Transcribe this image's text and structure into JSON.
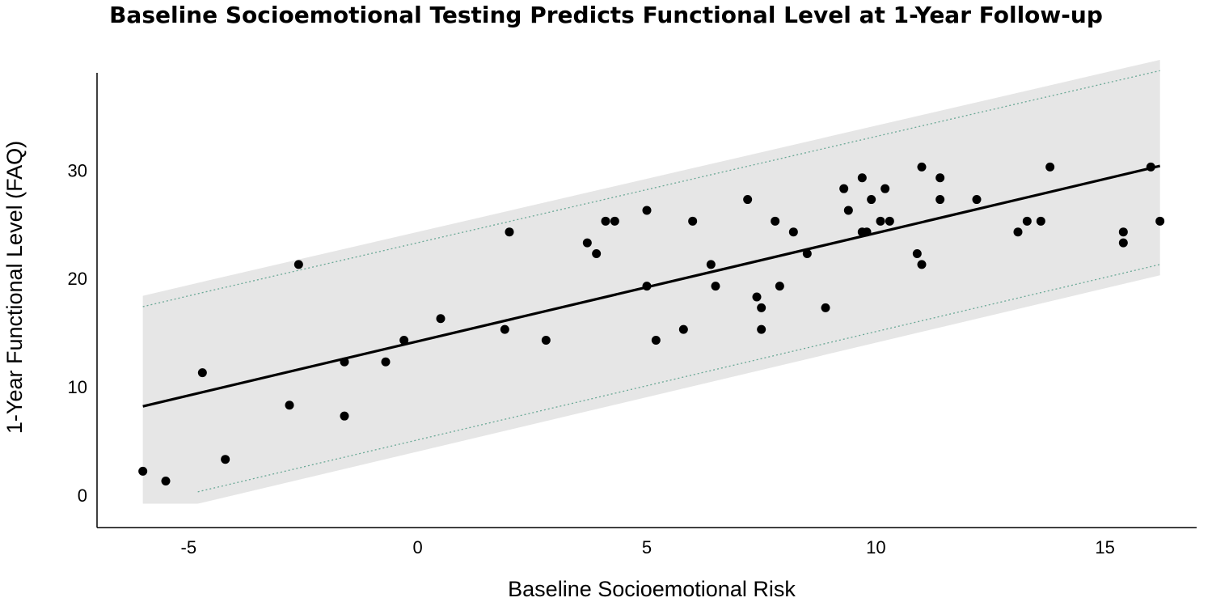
{
  "chart_data": {
    "type": "scatter",
    "title": "Baseline Socioemotional Testing Predicts Functional Level at 1-Year Follow-up",
    "xlabel": "Baseline Socioemotional Risk",
    "ylabel": "1-Year Functional Level (FAQ)",
    "xlim": [
      -7.0,
      17.0
    ],
    "ylim": [
      -3.0,
      39.0
    ],
    "x_ticks": [
      -5,
      0,
      5,
      10,
      15
    ],
    "y_ticks": [
      0,
      10,
      20,
      30
    ],
    "grid": false,
    "colors": {
      "points": "#000000",
      "fit_line": "#000000",
      "band": "#e6e6e6",
      "band_edge": "#6aa896",
      "axes": "#000000"
    },
    "fit_line": {
      "x": [
        -6.0,
        16.2
      ],
      "y": [
        8.2,
        30.4
      ]
    },
    "prediction_band": {
      "x": [
        -6.0,
        -4.8,
        16.2
      ],
      "outer_upper": [
        18.4,
        19.6,
        40.2
      ],
      "outer_lower": [
        -0.8,
        -0.8,
        20.3
      ],
      "inner_upper": [
        17.4,
        18.6,
        39.2
      ],
      "inner_lower": [
        null,
        0.3,
        21.3
      ]
    },
    "points": [
      {
        "x": -6.0,
        "y": 2.2
      },
      {
        "x": -5.5,
        "y": 1.3
      },
      {
        "x": -4.7,
        "y": 11.3
      },
      {
        "x": -4.2,
        "y": 3.3
      },
      {
        "x": -2.8,
        "y": 8.3
      },
      {
        "x": -2.6,
        "y": 21.3
      },
      {
        "x": -1.6,
        "y": 12.3
      },
      {
        "x": -1.6,
        "y": 7.3
      },
      {
        "x": -0.7,
        "y": 12.3
      },
      {
        "x": -0.3,
        "y": 14.3
      },
      {
        "x": 0.5,
        "y": 16.3
      },
      {
        "x": 1.9,
        "y": 15.3
      },
      {
        "x": 2.0,
        "y": 24.3
      },
      {
        "x": 2.8,
        "y": 14.3
      },
      {
        "x": 3.7,
        "y": 23.3
      },
      {
        "x": 3.9,
        "y": 22.3
      },
      {
        "x": 4.1,
        "y": 25.3
      },
      {
        "x": 4.3,
        "y": 25.3
      },
      {
        "x": 5.0,
        "y": 26.3
      },
      {
        "x": 5.0,
        "y": 19.3
      },
      {
        "x": 5.2,
        "y": 14.3
      },
      {
        "x": 5.8,
        "y": 15.3
      },
      {
        "x": 6.0,
        "y": 25.3
      },
      {
        "x": 6.4,
        "y": 21.3
      },
      {
        "x": 6.5,
        "y": 19.3
      },
      {
        "x": 7.2,
        "y": 27.3
      },
      {
        "x": 7.4,
        "y": 18.3
      },
      {
        "x": 7.5,
        "y": 17.3
      },
      {
        "x": 7.5,
        "y": 15.3
      },
      {
        "x": 7.8,
        "y": 25.3
      },
      {
        "x": 7.9,
        "y": 19.3
      },
      {
        "x": 8.2,
        "y": 24.3
      },
      {
        "x": 8.5,
        "y": 22.3
      },
      {
        "x": 8.9,
        "y": 17.3
      },
      {
        "x": 9.3,
        "y": 28.3
      },
      {
        "x": 9.4,
        "y": 26.3
      },
      {
        "x": 9.7,
        "y": 29.3
      },
      {
        "x": 9.7,
        "y": 24.3
      },
      {
        "x": 9.8,
        "y": 24.3
      },
      {
        "x": 9.9,
        "y": 27.3
      },
      {
        "x": 10.1,
        "y": 25.3
      },
      {
        "x": 10.2,
        "y": 28.3
      },
      {
        "x": 10.3,
        "y": 25.3
      },
      {
        "x": 10.9,
        "y": 22.3
      },
      {
        "x": 11.0,
        "y": 30.3
      },
      {
        "x": 11.0,
        "y": 21.3
      },
      {
        "x": 11.4,
        "y": 27.3
      },
      {
        "x": 11.4,
        "y": 29.3
      },
      {
        "x": 12.2,
        "y": 27.3
      },
      {
        "x": 13.1,
        "y": 24.3
      },
      {
        "x": 13.3,
        "y": 25.3
      },
      {
        "x": 13.6,
        "y": 25.3
      },
      {
        "x": 13.8,
        "y": 30.3
      },
      {
        "x": 15.4,
        "y": 24.3
      },
      {
        "x": 15.4,
        "y": 23.3
      },
      {
        "x": 16.0,
        "y": 30.3
      },
      {
        "x": 16.2,
        "y": 25.3
      }
    ]
  }
}
